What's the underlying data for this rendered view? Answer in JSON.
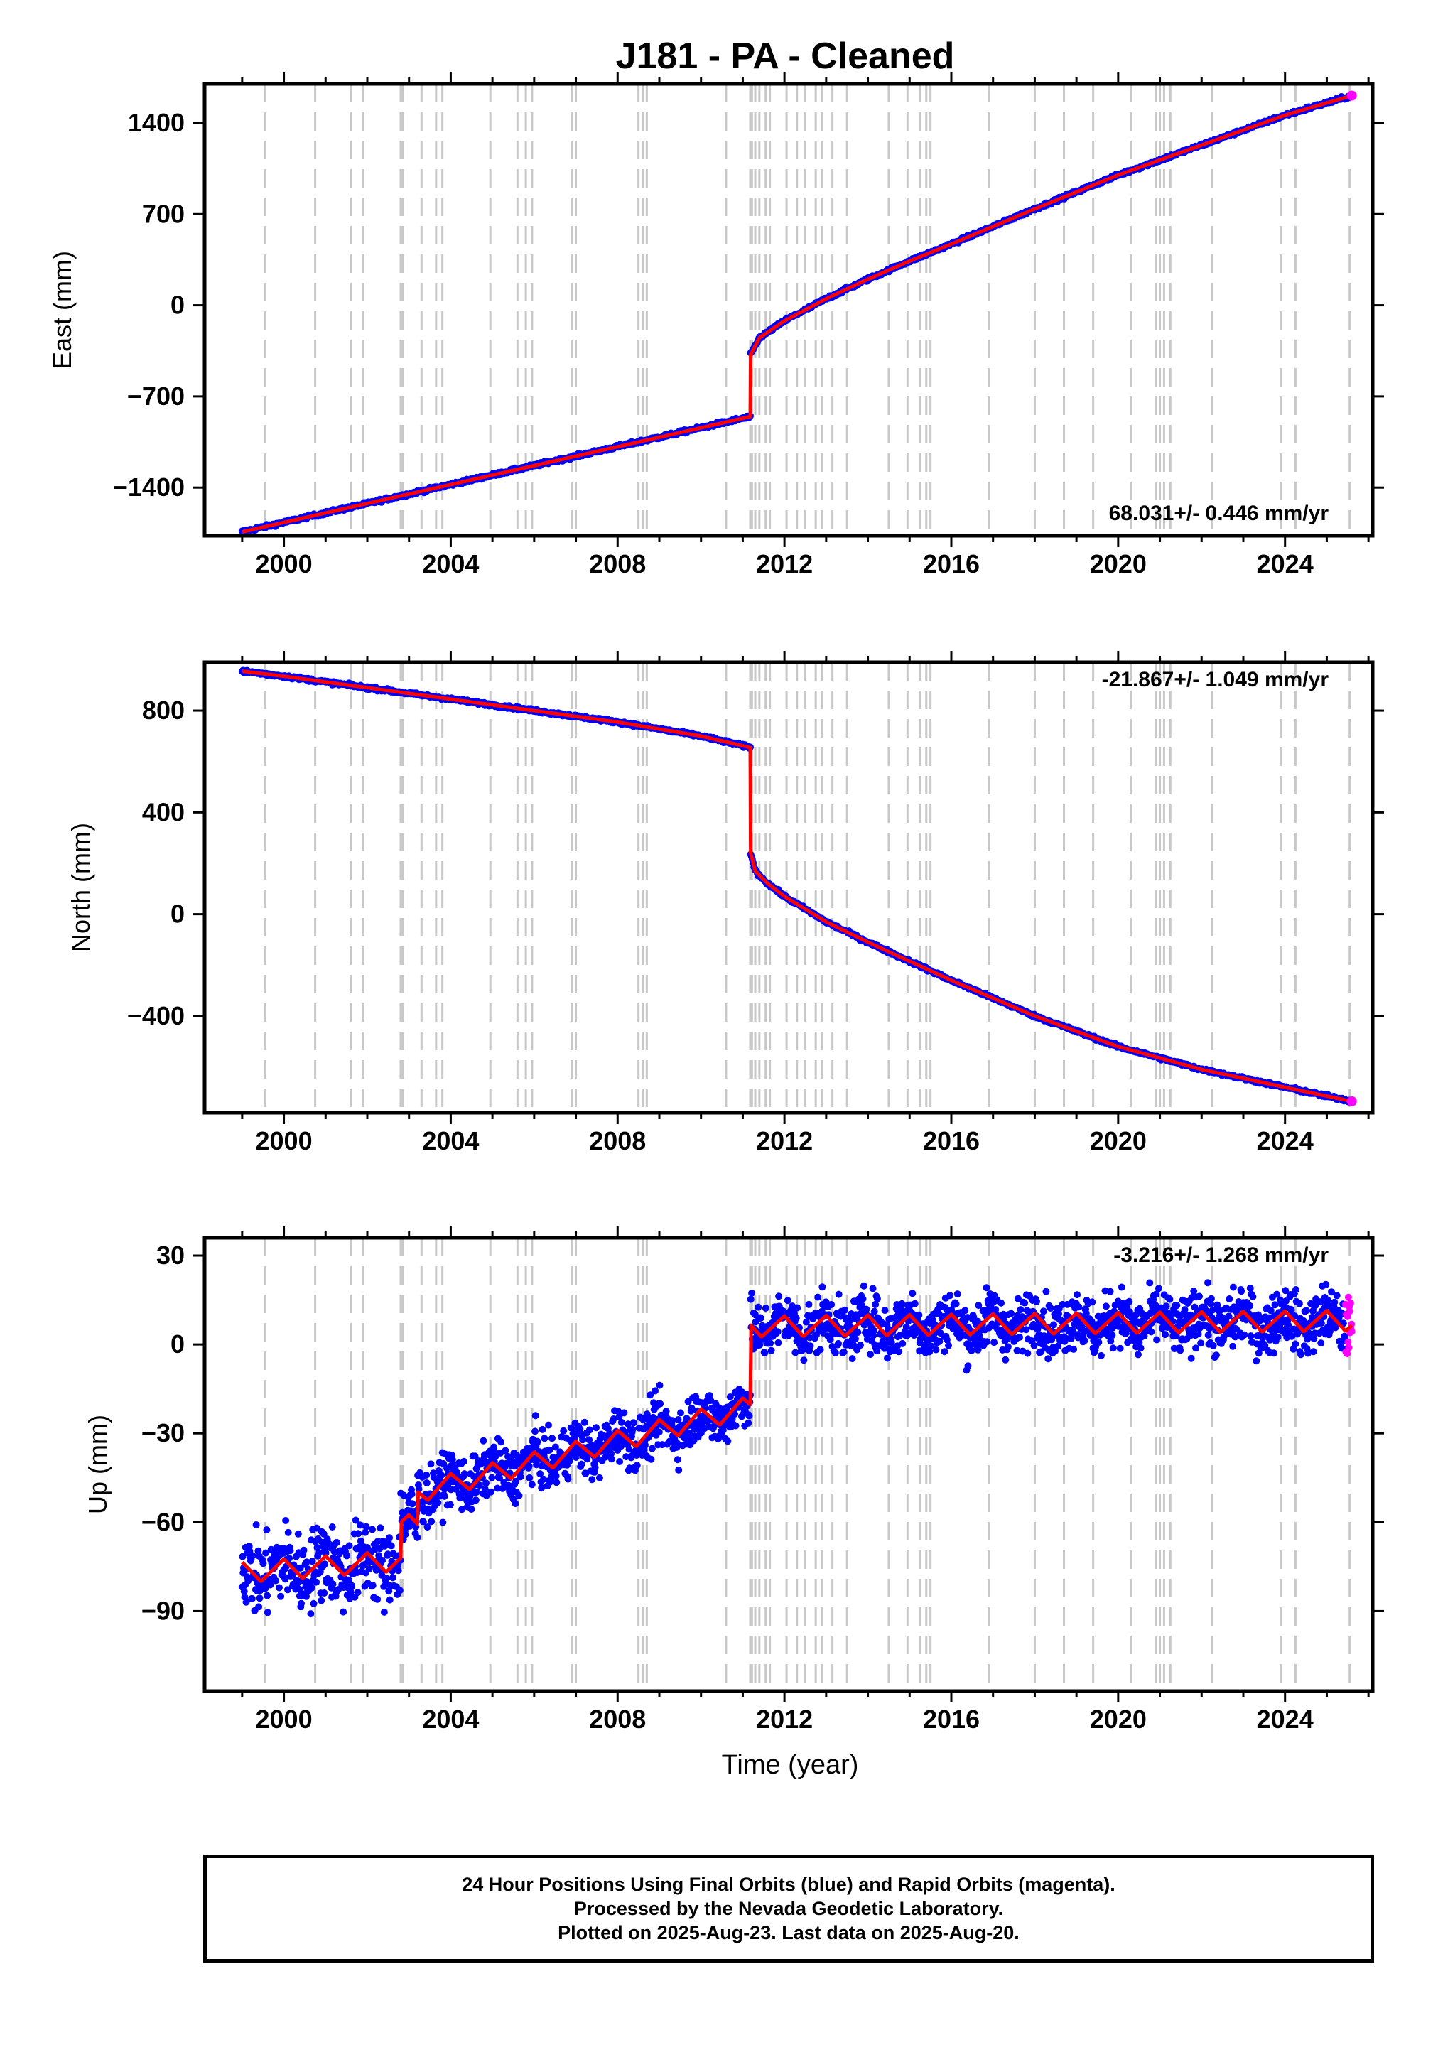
{
  "title": "J181  - PA - Cleaned",
  "colors": {
    "final_orbits": "#0000ff",
    "rapid_orbits": "#ff00ff",
    "model": "#ff0000",
    "event_lines": "#c8c8c8"
  },
  "footer": {
    "line1": "24 Hour Positions Using Final Orbits (blue) and Rapid Orbits (magenta).",
    "line2": "Processed by the Nevada Geodetic Laboratory.",
    "line3": "Plotted on 2025-Aug-23. Last data on 2025-Aug-20."
  },
  "chart_data": [
    {
      "type": "scatter",
      "ylabel": "East (mm)",
      "xlim": [
        1998.1,
        2026.1
      ],
      "ylim": [
        -1770,
        1700
      ],
      "xticks": [
        2000,
        2004,
        2008,
        2012,
        2016,
        2020,
        2024
      ],
      "yticks": [
        1400,
        700,
        0,
        -700,
        -1400
      ],
      "rate_label": "68.031+/- 0.446 mm/yr",
      "rate_position": "bottom-right",
      "series": [
        {
          "x": [
            1999.0,
            2011.18
          ],
          "y": [
            -1740,
            -855
          ]
        },
        {
          "x": [
            2011.19,
            2011.4,
            2012.0,
            2013.0,
            2014.0,
            2015.0,
            2016.0,
            2018.0,
            2020.0,
            2022.0,
            2024.0,
            2025.6
          ],
          "y": [
            -380,
            -250,
            -120,
            50,
            200,
            340,
            470,
            740,
            1000,
            1230,
            1460,
            1610
          ]
        }
      ]
    },
    {
      "type": "scatter",
      "ylabel": "North (mm)",
      "xlim": [
        1998.1,
        2026.1
      ],
      "ylim": [
        -780,
        990
      ],
      "xticks": [
        2000,
        2004,
        2008,
        2012,
        2016,
        2020,
        2024
      ],
      "yticks": [
        800,
        400,
        0,
        -400
      ],
      "rate_label": "-21.867+/- 1.049 mm/yr",
      "rate_position": "top-right",
      "series": [
        {
          "x": [
            1999.0,
            2000.0,
            2002.0,
            2004.0,
            2006.0,
            2008.0,
            2010.0,
            2011.18
          ],
          "y": [
            955,
            935,
            890,
            845,
            800,
            755,
            700,
            655
          ]
        },
        {
          "x": [
            2011.19,
            2011.3,
            2011.6,
            2012.0,
            2013.0,
            2014.0,
            2016.0,
            2018.0,
            2020.0,
            2022.0,
            2024.0,
            2025.6
          ],
          "y": [
            240,
            170,
            120,
            70,
            -30,
            -110,
            -260,
            -400,
            -520,
            -610,
            -680,
            -735
          ]
        }
      ]
    },
    {
      "type": "scatter",
      "ylabel": "Up (mm)",
      "xlabel": "Time (year)",
      "xlim": [
        1998.1,
        2026.1
      ],
      "ylim": [
        -117,
        36
      ],
      "xticks": [
        2000,
        2004,
        2008,
        2012,
        2016,
        2020,
        2024
      ],
      "yticks": [
        30,
        0,
        -30,
        -60,
        -90
      ],
      "rate_label": "-3.216+/- 1.268 mm/yr",
      "rate_position": "top-right",
      "model_segments": [
        {
          "x0": 1999.0,
          "x1": 2002.8,
          "base0": -77,
          "base1": -73
        },
        {
          "x0": 2002.8,
          "x1": 2003.2,
          "base0": -61,
          "base1": -61
        },
        {
          "x0": 2003.2,
          "x1": 2011.18,
          "base0": -50,
          "base1": -21
        },
        {
          "x0": 2011.18,
          "x1": 2025.6,
          "base0": 6,
          "base1": 8
        }
      ],
      "seasonal_amplitude_mm": 7,
      "rapid_orbits_span": [
        2025.45,
        2025.6
      ]
    }
  ],
  "event_years": [
    1999.55,
    2000.75,
    2001.6,
    2001.9,
    2002.8,
    2002.85,
    2003.3,
    2003.65,
    2003.8,
    2004.95,
    2005.6,
    2005.8,
    2005.95,
    2006.9,
    2007.0,
    2008.5,
    2008.6,
    2008.7,
    2010.6,
    2011.18,
    2011.22,
    2011.3,
    2011.4,
    2011.55,
    2011.65,
    2012.05,
    2012.3,
    2012.5,
    2012.75,
    2012.9,
    2013.15,
    2013.5,
    2014.5,
    2014.95,
    2015.25,
    2015.4,
    2015.5,
    2016.9,
    2018.0,
    2018.7,
    2019.4,
    2020.3,
    2020.9,
    2021.0,
    2021.1,
    2021.25,
    2022.25,
    2023.9,
    2024.25,
    2025.55
  ]
}
